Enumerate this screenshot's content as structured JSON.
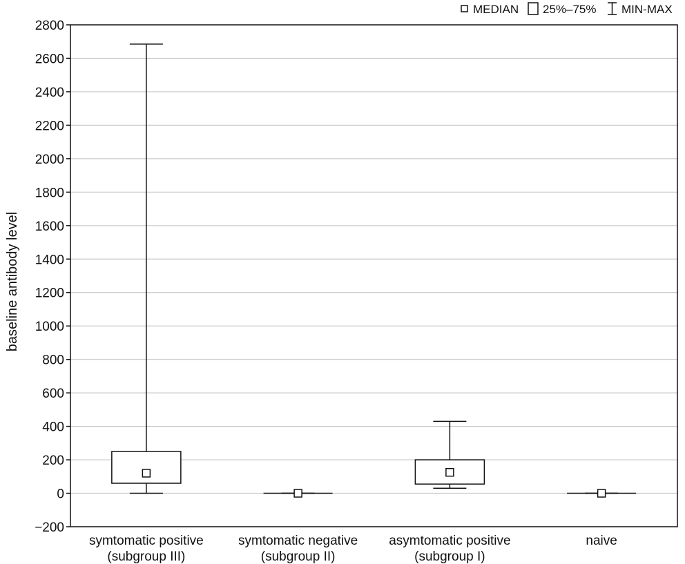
{
  "chart_data": {
    "type": "boxplot",
    "title": "",
    "xlabel": "",
    "ylabel": "baseline antibody level",
    "ylim": [
      -200,
      2800
    ],
    "yticks": [
      -200,
      0,
      200,
      400,
      600,
      800,
      1000,
      1200,
      1400,
      1600,
      1800,
      2000,
      2200,
      2400,
      2600,
      2800
    ],
    "grid": true,
    "legend_position": "top-right",
    "legend": [
      "MEDIAN",
      "25%–75%",
      "MIN-MAX"
    ],
    "categories": [
      [
        "symtomatic positive",
        "(subgroup III)"
      ],
      [
        "symtomatic negative",
        "(subgroup II)"
      ],
      [
        "asymtomatic positive",
        "(subgroup I)"
      ],
      [
        "naive"
      ]
    ],
    "boxes": [
      {
        "min": 0,
        "q1": 60,
        "median": 120,
        "q3": 250,
        "max": 2685
      },
      {
        "min": 0,
        "q1": 0,
        "median": 0,
        "q3": 0,
        "max": 0
      },
      {
        "min": 30,
        "q1": 55,
        "median": 125,
        "q3": 200,
        "max": 430
      },
      {
        "min": 0,
        "q1": 0,
        "median": 0,
        "q3": 0,
        "max": 0
      }
    ]
  }
}
